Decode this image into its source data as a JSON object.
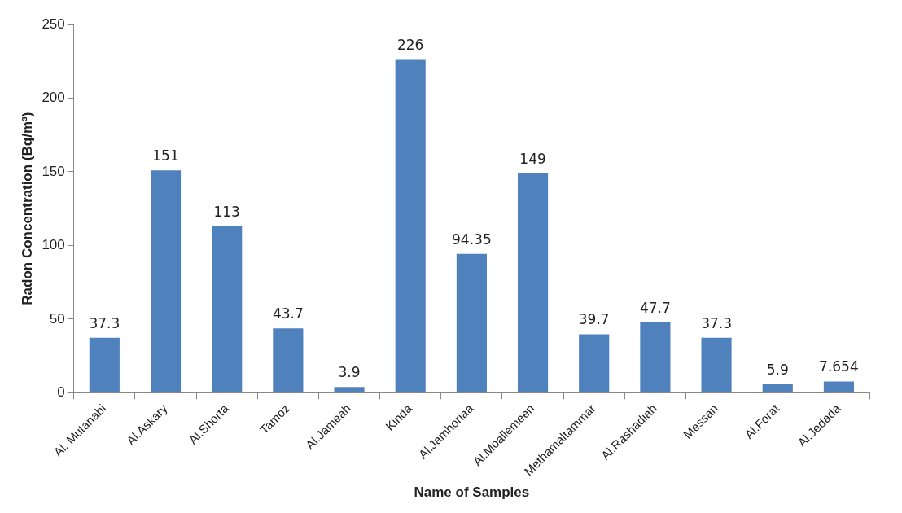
{
  "chart_data": {
    "type": "bar",
    "xlabel": "Name of Samples",
    "ylabel": "Radon Concentration (Bq/m³)",
    "categories": [
      "Al. Mutanabi",
      "Al.Askary",
      "Al.Shorta",
      "Tamoz",
      "Al.Jameah",
      "Kinda",
      "Al.Jamhoriaa",
      "Al.Moallemeen",
      "Methamaltammar",
      "Al.Rashadiah",
      "Messan",
      "Al.Forat",
      "Al.Jedada"
    ],
    "values": [
      37.3,
      151,
      113,
      43.7,
      3.9,
      226,
      94.35,
      149,
      39.7,
      47.7,
      37.3,
      5.9,
      7.654
    ],
    "color": "#4f81bd",
    "ylim": [
      0,
      250
    ],
    "yticks": [
      0,
      50,
      100,
      150,
      200,
      250
    ],
    "grid": false,
    "legend": false,
    "data_labels": true
  }
}
